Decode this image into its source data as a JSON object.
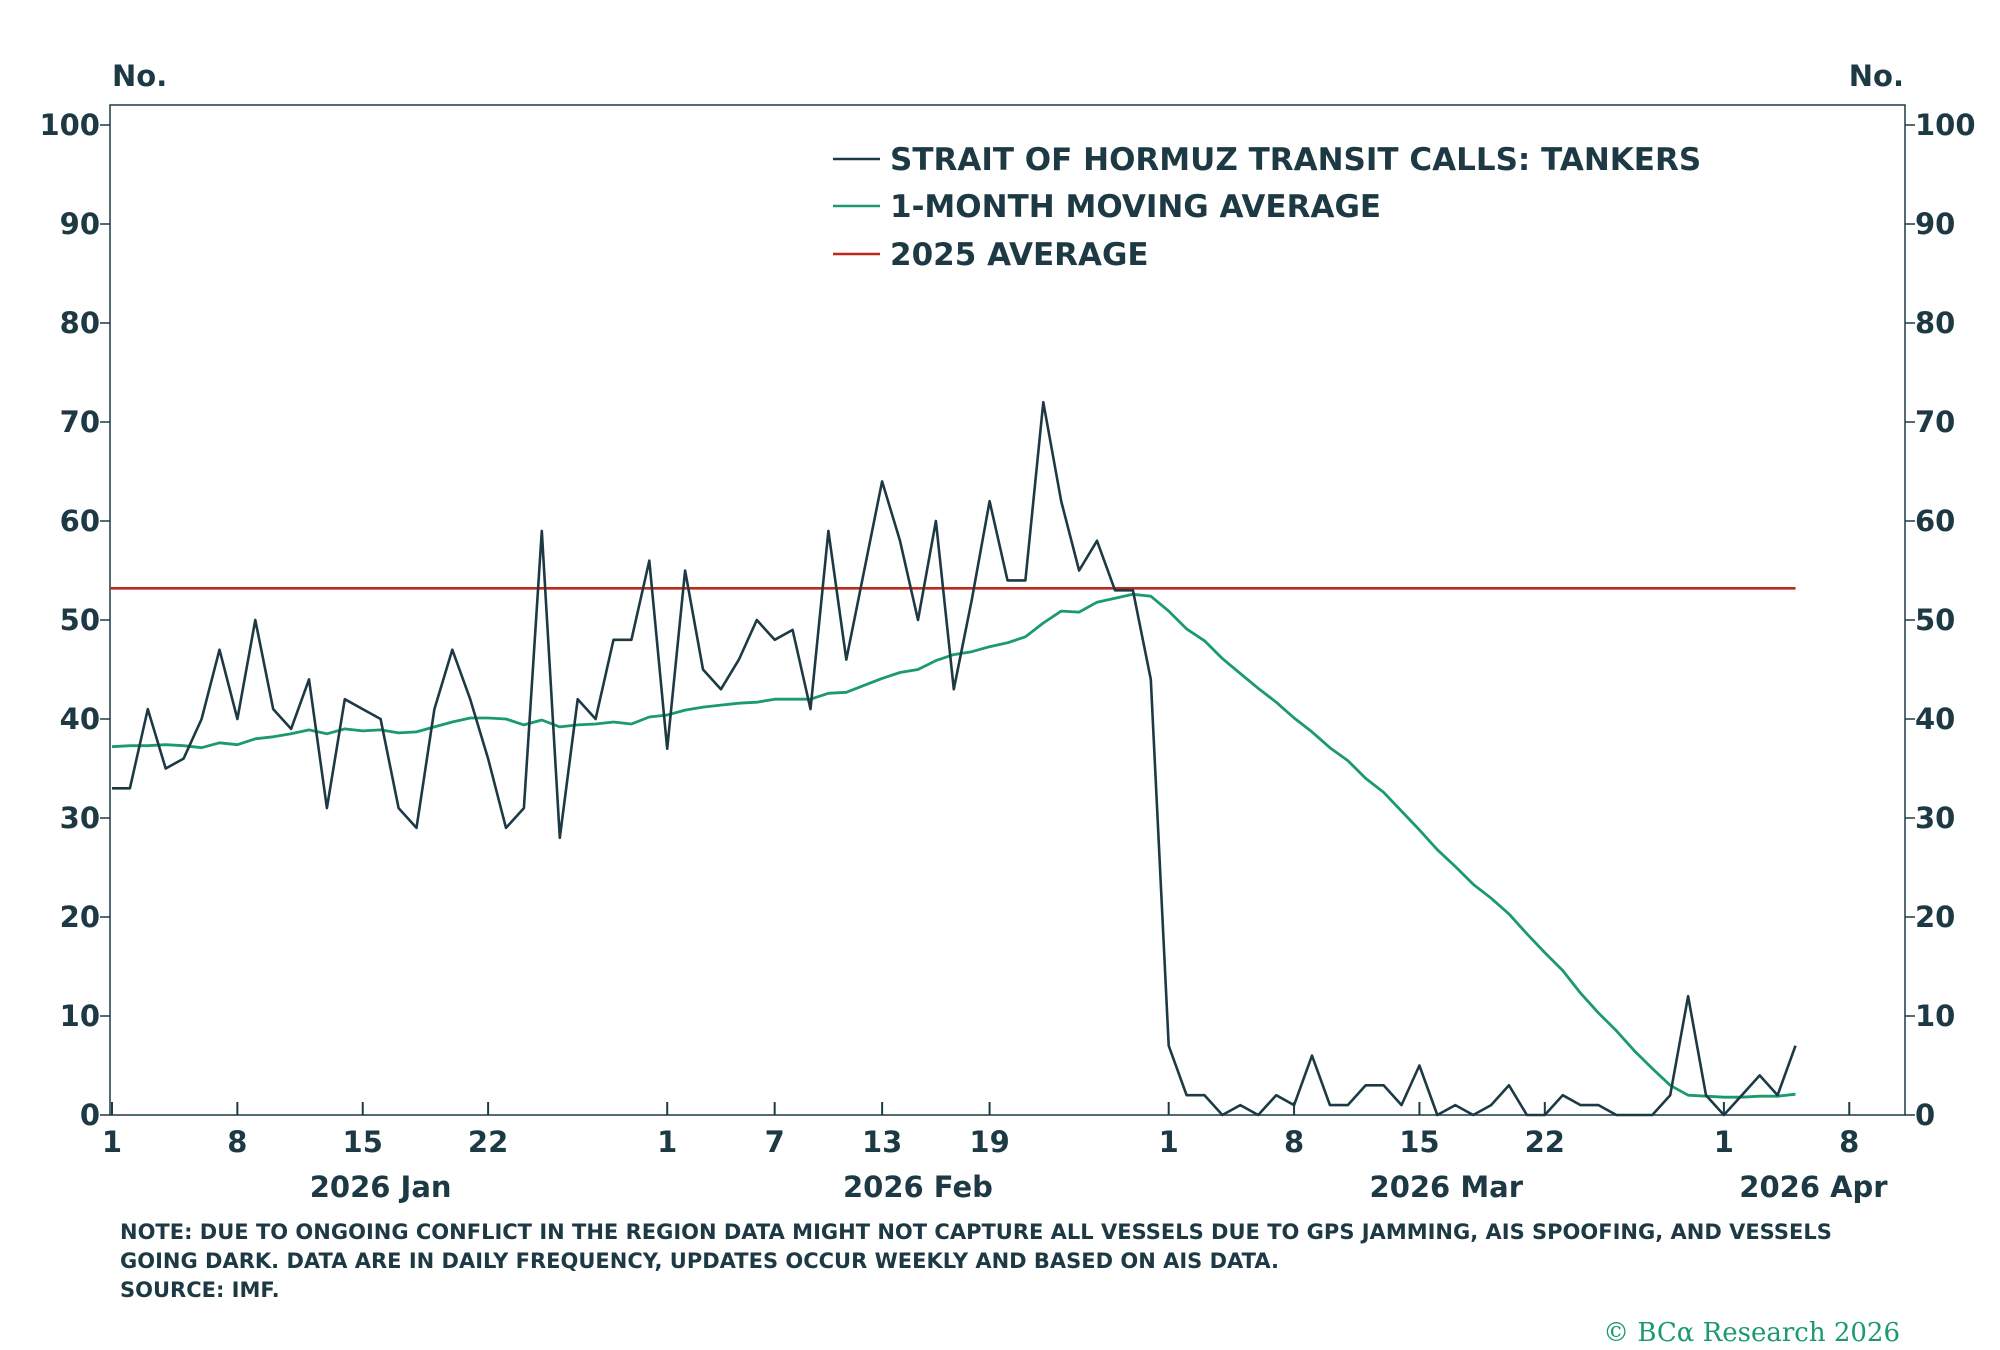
{
  "axes": {
    "left_unit": "No.",
    "right_unit": "No.",
    "y_ticks": [
      0,
      10,
      20,
      30,
      40,
      50,
      60,
      70,
      80,
      90,
      100
    ],
    "x_day_ticks": [
      {
        "day": 0,
        "label": "1"
      },
      {
        "day": 7,
        "label": "8"
      },
      {
        "day": 14,
        "label": "15"
      },
      {
        "day": 21,
        "label": "22"
      },
      {
        "day": 31,
        "label": "1"
      },
      {
        "day": 37,
        "label": "7"
      },
      {
        "day": 43,
        "label": "13"
      },
      {
        "day": 49,
        "label": "19"
      },
      {
        "day": 59,
        "label": "1"
      },
      {
        "day": 66,
        "label": "8"
      },
      {
        "day": 73,
        "label": "15"
      },
      {
        "day": 80,
        "label": "22"
      },
      {
        "day": 90,
        "label": "1"
      },
      {
        "day": 97,
        "label": "8"
      }
    ],
    "month_labels": [
      {
        "day": 15,
        "label": "2026 Jan"
      },
      {
        "day": 45,
        "label": "2026 Feb"
      },
      {
        "day": 74.5,
        "label": "2026 Mar"
      },
      {
        "day": 95,
        "label": "2026 Apr"
      }
    ]
  },
  "legend": [
    {
      "label": "STRAIT OF HORMUZ TRANSIT CALLS: TANKERS",
      "color": "#1d3a44"
    },
    {
      "label": "1-MONTH MOVING AVERAGE",
      "color": "#1a9a6e"
    },
    {
      "label": "2025 AVERAGE",
      "color": "#c0281e"
    }
  ],
  "notes": [
    "NOTE: DUE TO ONGOING CONFLICT IN THE REGION DATA MIGHT NOT CAPTURE ALL VESSELS DUE TO GPS JAMMING, AIS SPOOFING, AND VESSELS GOING DARK. DATA ARE IN DAILY FREQUENCY, UPDATES OCCUR WEEKLY AND BASED ON AIS DATA.",
    "SOURCE: IMF."
  ],
  "copyright": "© BCα Research 2026",
  "chart_data": {
    "type": "line",
    "x_unit": "date",
    "x_start": "2026-01-01",
    "ylim": [
      0,
      100
    ],
    "xlim": [
      "2026-01-01",
      "2026-04-10"
    ],
    "grid": false,
    "legend_position": "top-center",
    "series": [
      {
        "name": "STRAIT OF HORMUZ TRANSIT CALLS: TANKERS",
        "color": "#1d3a44",
        "values": [
          33,
          33,
          41,
          35,
          36,
          40,
          47,
          40,
          50,
          41,
          39,
          44,
          31,
          42,
          41,
          40,
          31,
          29,
          41,
          47,
          42,
          36,
          29,
          31,
          59,
          28,
          42,
          40,
          48,
          48,
          56,
          37,
          55,
          45,
          43,
          46,
          50,
          48,
          49,
          41,
          59,
          46,
          55,
          64,
          58,
          50,
          60,
          43,
          52,
          62,
          54,
          54,
          72,
          62,
          55,
          58,
          53,
          53,
          44,
          7,
          2,
          2,
          0,
          1,
          0,
          2,
          1,
          6,
          1,
          1,
          3,
          3,
          1,
          5,
          0,
          1,
          0,
          1,
          3,
          0,
          0,
          2,
          1,
          1,
          0,
          0,
          0,
          2,
          12,
          2,
          0,
          2,
          4,
          2,
          7
        ]
      },
      {
        "name": "1-MONTH MOVING AVERAGE",
        "color": "#1a9a6e",
        "values": [
          37.2,
          37.3,
          37.3,
          37.4,
          37.3,
          37.1,
          37.6,
          37.4,
          38.0,
          38.2,
          38.5,
          38.9,
          38.5,
          39.0,
          38.8,
          38.9,
          38.6,
          38.7,
          39.2,
          39.7,
          40.1,
          40.1,
          40.0,
          39.4,
          39.9,
          39.2,
          39.4,
          39.5,
          39.7,
          39.5,
          40.2,
          40.4,
          40.9,
          41.2,
          41.4,
          41.6,
          41.7,
          42.0,
          42.0,
          42.0,
          42.6,
          42.7,
          43.4,
          44.1,
          44.7,
          45.0,
          45.9,
          46.5,
          46.8,
          47.3,
          47.7,
          48.3,
          49.7,
          50.9,
          50.8,
          51.8,
          52.2,
          52.6,
          52.4,
          50.9,
          49.1,
          47.9,
          46.1,
          44.6,
          43.1,
          41.7,
          40.1,
          38.7,
          37.1,
          35.8,
          34.0,
          32.6,
          30.7,
          28.8,
          26.8,
          25.1,
          23.3,
          21.9,
          20.3,
          18.3,
          16.4,
          14.6,
          12.3,
          10.3,
          8.5,
          6.5,
          4.7,
          3.0,
          2.0,
          1.9,
          1.8,
          1.8,
          1.9,
          1.9,
          2.1
        ]
      },
      {
        "name": "2025 AVERAGE",
        "color": "#c0281e",
        "values": [
          53.2
        ],
        "constant": true
      }
    ]
  }
}
